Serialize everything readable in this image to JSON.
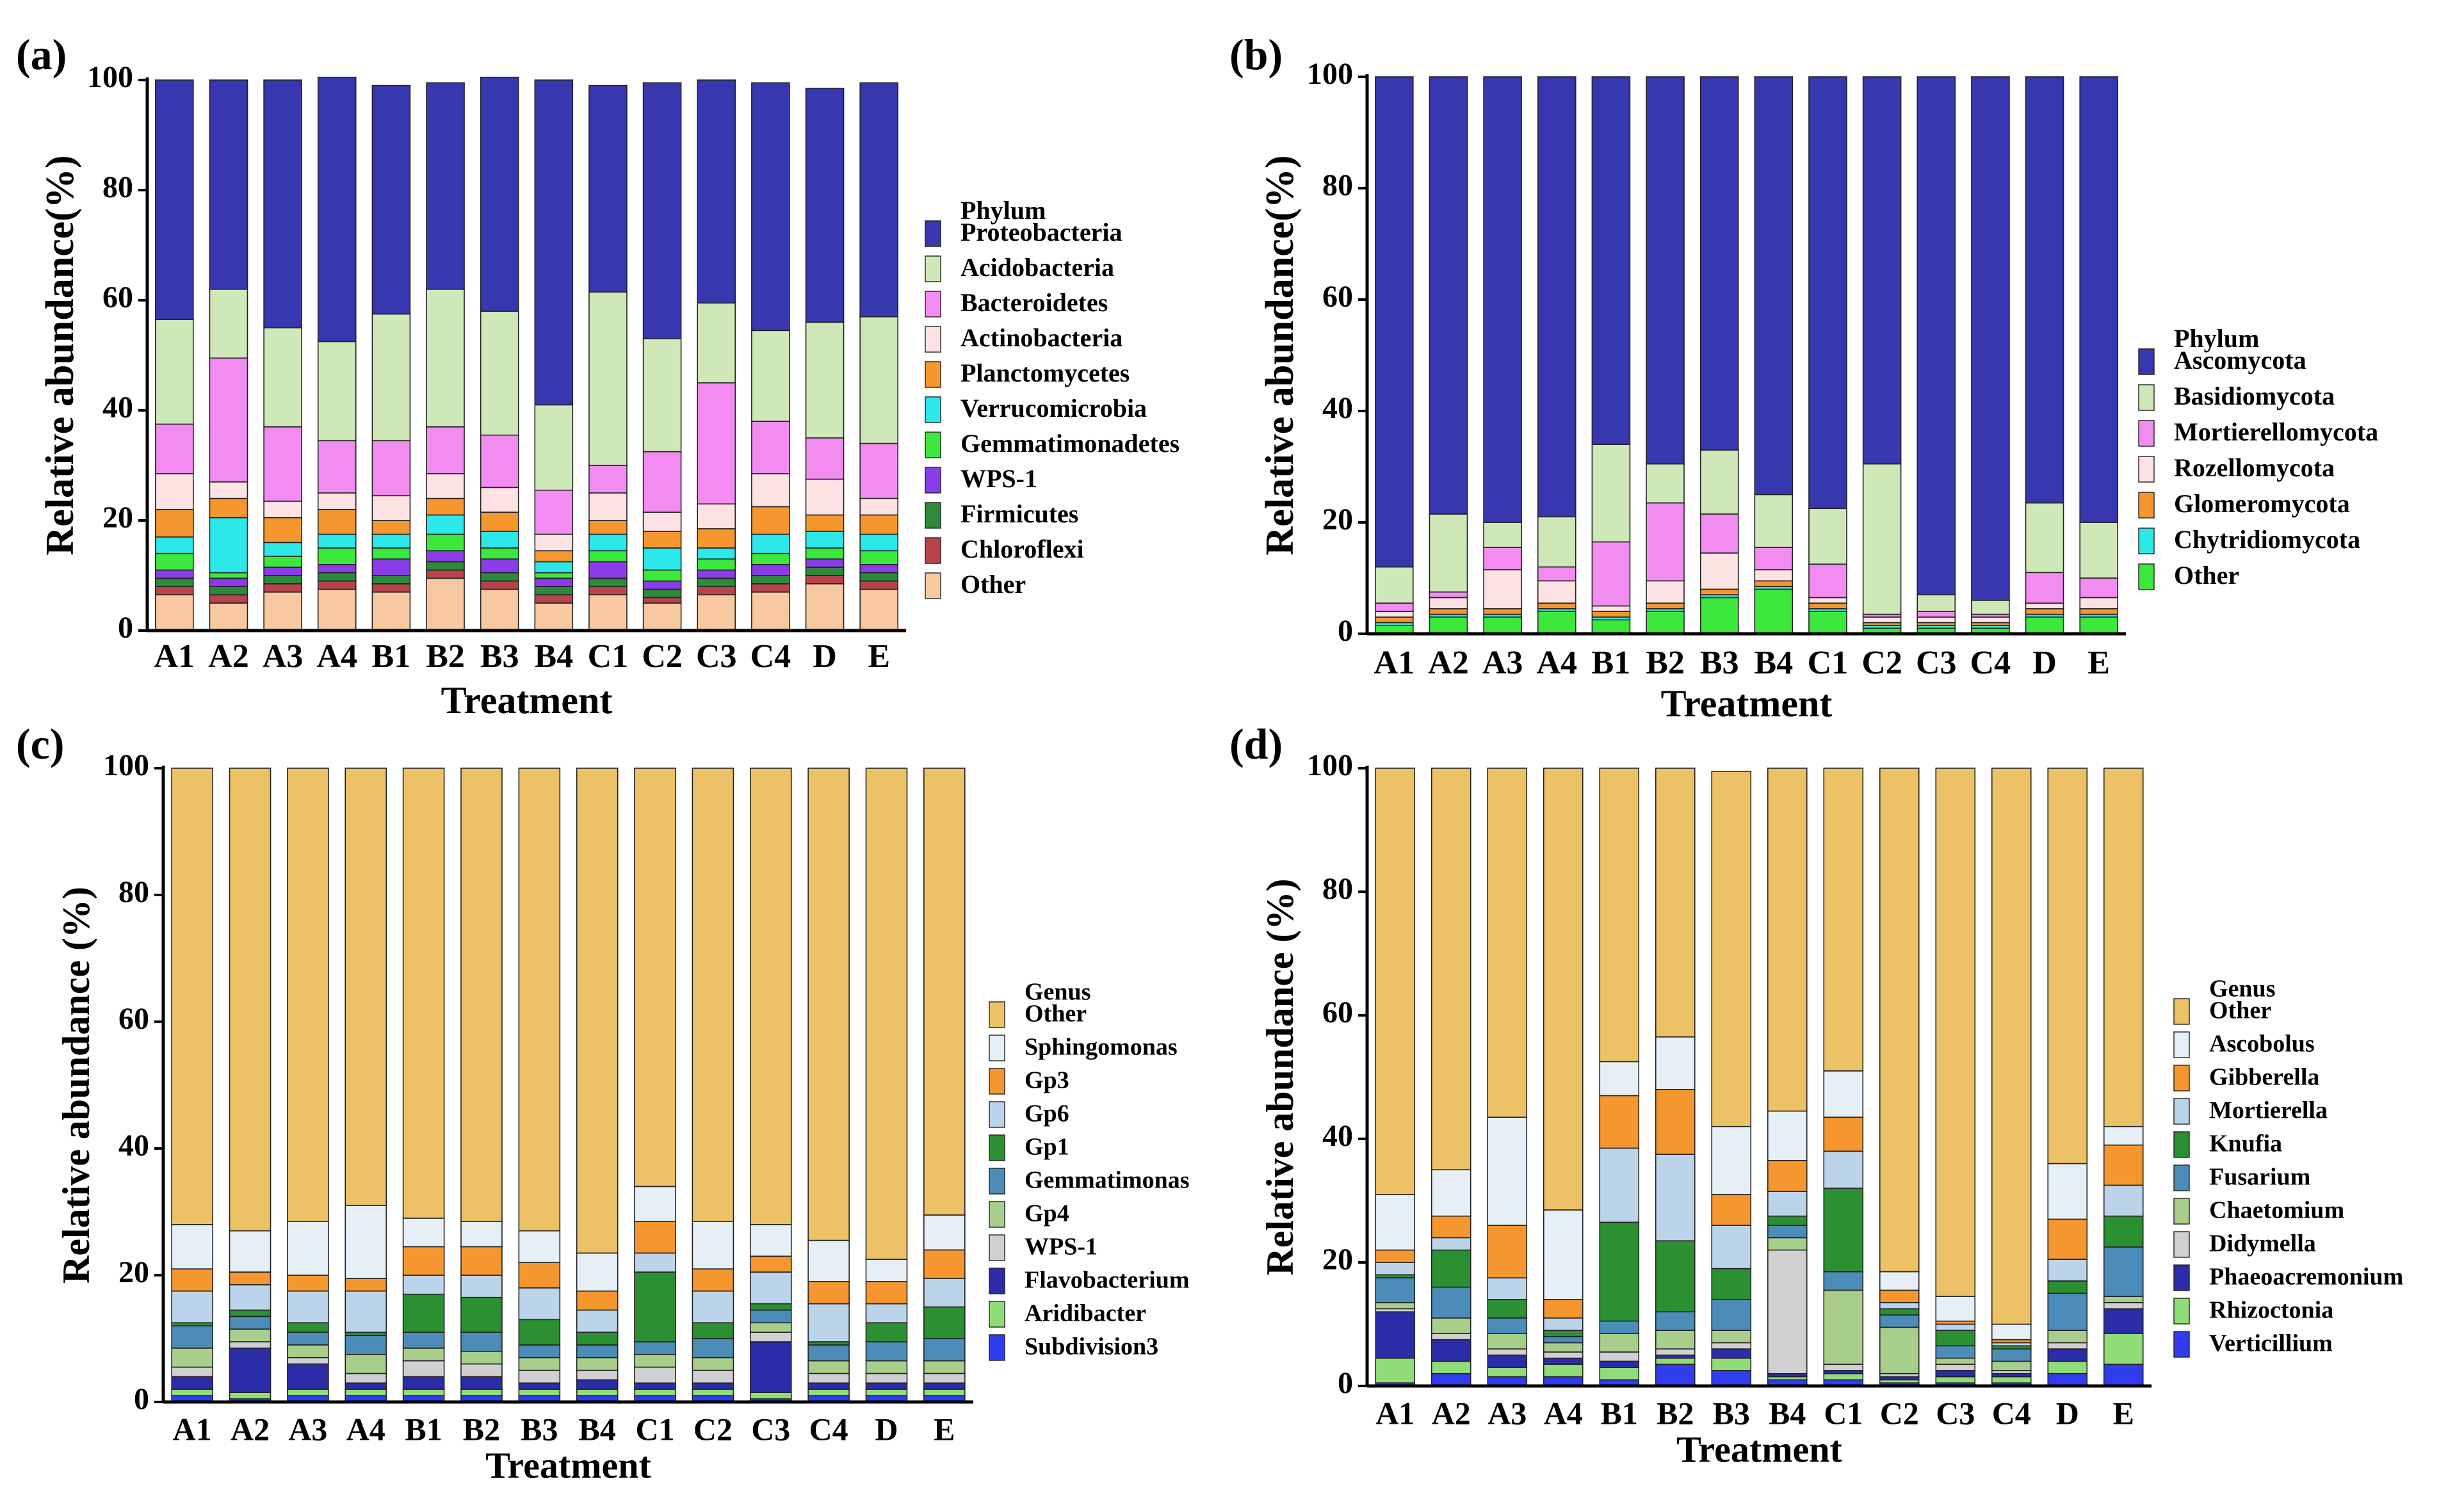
{
  "chart_data": [
    {
      "type": "bar",
      "stacked": true,
      "panel_label": "(a)",
      "xlabel": "Treatment",
      "ylabel": "Relative abundance(%)",
      "ylim": [
        0,
        100
      ],
      "yticks": [
        "0",
        "20",
        "40",
        "60",
        "80",
        "100"
      ],
      "legend_title": "Phylum",
      "legend_position": "right",
      "categories": [
        "A1",
        "A2",
        "A3",
        "A4",
        "B1",
        "B2",
        "B3",
        "B4",
        "C1",
        "C2",
        "C3",
        "C4",
        "D",
        "E"
      ],
      "series": [
        {
          "name": "Other",
          "color": "#F8C9A0",
          "values": [
            6.5,
            5,
            7,
            7.5,
            7,
            9.5,
            7.5,
            5,
            6.5,
            5,
            6.5,
            7,
            8.5,
            7.5
          ]
        },
        {
          "name": "Chloroflexi",
          "color": "#B8434D",
          "values": [
            1.5,
            1.5,
            1.5,
            1.5,
            1.5,
            1.5,
            1.5,
            1.5,
            1.5,
            1,
            1.5,
            1.5,
            1.5,
            1.5
          ]
        },
        {
          "name": "Firmicutes",
          "color": "#2C8A3A",
          "values": [
            1.5,
            1.5,
            1.5,
            1.5,
            1.5,
            1.5,
            1.5,
            1.5,
            1.5,
            1.5,
            1.5,
            1.5,
            1.5,
            1.5
          ]
        },
        {
          "name": "WPS-1",
          "color": "#8B3CE8",
          "values": [
            1.5,
            1.5,
            1.5,
            1.5,
            3,
            2,
            2.5,
            1.5,
            3,
            1.5,
            1.5,
            2,
            1.5,
            1.5
          ]
        },
        {
          "name": "Gemmatimonadetes",
          "color": "#3CE83C",
          "values": [
            3,
            1,
            2,
            3,
            2,
            3,
            2,
            1,
            2,
            2,
            2,
            2,
            2,
            2.5
          ]
        },
        {
          "name": "Verrucomicrobia",
          "color": "#2CE8E8",
          "values": [
            3,
            10,
            2.5,
            2.5,
            2.5,
            3.5,
            3,
            2,
            3,
            4,
            2,
            3.5,
            3,
            3
          ]
        },
        {
          "name": "Planctomycetes",
          "color": "#F5972E",
          "values": [
            5,
            3.5,
            4.5,
            4.5,
            2.5,
            3,
            3.5,
            2,
            2.5,
            3,
            3.5,
            5,
            3,
            3.5
          ]
        },
        {
          "name": "Actinobacteria",
          "color": "#FCE2E2",
          "values": [
            6.5,
            3,
            3,
            3,
            4.5,
            4.5,
            4.5,
            3,
            5,
            3.5,
            4.5,
            6,
            6.5,
            3
          ]
        },
        {
          "name": "Bacteroidetes",
          "color": "#F28CF0",
          "values": [
            9,
            22.5,
            13.5,
            9.5,
            10,
            8.5,
            9.5,
            8,
            5,
            11,
            22,
            9.5,
            7.5,
            10
          ]
        },
        {
          "name": "Acidobacteria",
          "color": "#CFE8B8",
          "values": [
            19,
            12.5,
            18,
            18,
            23,
            25,
            22.5,
            15.5,
            31.5,
            20.5,
            14.5,
            16.5,
            21,
            23
          ]
        },
        {
          "name": "Proteobacteria",
          "color": "#3737B0",
          "values": [
            43.5,
            38,
            45,
            48,
            41.5,
            37.5,
            42.5,
            59,
            37.5,
            46.5,
            40.5,
            45,
            42.5,
            42.5
          ]
        }
      ]
    },
    {
      "type": "bar",
      "stacked": true,
      "panel_label": "(b)",
      "xlabel": "Treatment",
      "ylabel": "Relative abundance(%)",
      "ylim": [
        0,
        100
      ],
      "yticks": [
        "0",
        "20",
        "40",
        "60",
        "80",
        "100"
      ],
      "legend_title": "Phylum",
      "legend_position": "right",
      "categories": [
        "A1",
        "A2",
        "A3",
        "A4",
        "B1",
        "B2",
        "B3",
        "B4",
        "C1",
        "C2",
        "C3",
        "C4",
        "D",
        "E"
      ],
      "series": [
        {
          "name": "Other",
          "color": "#3CE83C",
          "values": [
            1.5,
            3,
            3,
            4,
            2.5,
            4,
            6.5,
            8,
            4,
            1,
            1,
            1,
            3,
            3
          ]
        },
        {
          "name": "Chytridiomycota",
          "color": "#2CE8E8",
          "values": [
            0.5,
            0.5,
            0.5,
            0.5,
            0.5,
            0.5,
            0.5,
            0.5,
            0.5,
            0.5,
            0.5,
            0.5,
            0.5,
            0.5
          ]
        },
        {
          "name": "Glomeromycota",
          "color": "#F5972E",
          "values": [
            1,
            1,
            1,
            1,
            1,
            1,
            1,
            1,
            1,
            0.5,
            0.5,
            0.5,
            1,
            1
          ]
        },
        {
          "name": "Rozellomycota",
          "color": "#FCE2E2",
          "values": [
            1,
            2,
            7,
            4,
            1,
            4,
            6.5,
            2,
            1,
            1,
            1,
            1,
            1,
            2
          ]
        },
        {
          "name": "Mortierellomycota",
          "color": "#F28CF0",
          "values": [
            1.5,
            1,
            4,
            2.5,
            11.5,
            14,
            7,
            4,
            6,
            0.5,
            1,
            0.5,
            5.5,
            3.5
          ]
        },
        {
          "name": "Basidiomycota",
          "color": "#CFE8B8",
          "values": [
            6.5,
            14,
            4.5,
            9,
            17.5,
            7,
            11.5,
            9.5,
            10,
            27,
            3,
            2.5,
            12.5,
            10
          ]
        },
        {
          "name": "Ascomycota",
          "color": "#3737B0",
          "values": [
            88,
            78.5,
            80,
            79,
            66,
            69.5,
            67,
            75,
            77.5,
            69.5,
            93,
            94,
            76.5,
            80
          ]
        }
      ]
    },
    {
      "type": "bar",
      "stacked": true,
      "panel_label": "(c)",
      "xlabel": "Treatment",
      "ylabel": "Relative abundance (%)",
      "ylim": [
        0,
        100
      ],
      "yticks": [
        "0",
        "20",
        "40",
        "60",
        "80",
        "100"
      ],
      "legend_title": "Genus",
      "legend_position": "right",
      "categories": [
        "A1",
        "A2",
        "A3",
        "A4",
        "B1",
        "B2",
        "B3",
        "B4",
        "C1",
        "C2",
        "C3",
        "C4",
        "D",
        "E"
      ],
      "series": [
        {
          "name": "Subdivision3",
          "color": "#2F3CF0",
          "values": [
            1,
            0.5,
            1,
            1,
            1,
            1,
            1,
            1,
            1,
            1,
            0.5,
            1,
            1,
            1
          ]
        },
        {
          "name": "Aridibacter",
          "color": "#90DC78",
          "values": [
            1,
            1,
            1,
            1,
            1,
            1,
            1,
            1,
            1,
            1,
            1,
            1,
            1,
            1
          ]
        },
        {
          "name": "Flavobacterium",
          "color": "#2C2CA8",
          "values": [
            2,
            7,
            4,
            1,
            2,
            2,
            1,
            1.5,
            1,
            1,
            8,
            1,
            1,
            1
          ]
        },
        {
          "name": "WPS-1",
          "color": "#D0D0D0",
          "values": [
            1.5,
            1,
            1,
            1.5,
            2.5,
            2,
            2,
            1.5,
            2.5,
            2,
            1.5,
            1.5,
            1.5,
            1.5
          ]
        },
        {
          "name": "Gp4",
          "color": "#A8CE8C",
          "values": [
            3,
            2,
            2,
            3,
            2,
            2,
            2,
            2,
            2,
            2,
            1.5,
            2,
            2,
            2
          ]
        },
        {
          "name": "Gemmatimonas",
          "color": "#4B8CB8",
          "values": [
            3.5,
            2,
            2,
            3,
            2.5,
            3,
            2,
            2,
            2,
            3,
            2,
            2.5,
            3,
            3.5
          ]
        },
        {
          "name": "Gp1",
          "color": "#2A9032",
          "values": [
            0.5,
            1,
            1.5,
            0.5,
            6,
            5.5,
            4,
            2,
            11,
            2.5,
            1,
            0.5,
            3,
            5
          ]
        },
        {
          "name": "Gp6",
          "color": "#BCD4EA",
          "values": [
            5,
            4,
            5,
            6.5,
            3,
            3.5,
            5,
            3.5,
            3,
            5,
            5,
            6,
            3,
            4.5
          ]
        },
        {
          "name": "Gp3",
          "color": "#F5972E",
          "values": [
            3.5,
            2,
            2.5,
            2,
            4.5,
            4.5,
            4,
            3,
            5,
            3.5,
            2.5,
            3.5,
            3.5,
            4.5
          ]
        },
        {
          "name": "Sphingomonas",
          "color": "#E6EEF6",
          "values": [
            7,
            6.5,
            8.5,
            11.5,
            4.5,
            4,
            5,
            6,
            5.5,
            7.5,
            5,
            6.5,
            3.5,
            5.5
          ]
        },
        {
          "name": "Other",
          "color": "#EDC165",
          "values": [
            72,
            73,
            71.5,
            69,
            71,
            71.5,
            73,
            76.5,
            66,
            71.5,
            72,
            74.5,
            77.5,
            70.5
          ]
        }
      ]
    },
    {
      "type": "bar",
      "stacked": true,
      "panel_label": "(d)",
      "xlabel": "Treatment",
      "ylabel": "Relative abundance (%)",
      "ylim": [
        0,
        100
      ],
      "yticks": [
        "0",
        "20",
        "40",
        "60",
        "80",
        "100"
      ],
      "legend_title": "Genus",
      "legend_position": "right",
      "categories": [
        "A1",
        "A2",
        "A3",
        "A4",
        "B1",
        "B2",
        "B3",
        "B4",
        "C1",
        "C2",
        "C3",
        "C4",
        "D",
        "E"
      ],
      "series": [
        {
          "name": "Verticillium",
          "color": "#2F3CF0",
          "values": [
            0.5,
            2,
            1.5,
            1.5,
            1,
            3.5,
            2.5,
            1,
            1,
            0.5,
            0.5,
            0.5,
            2,
            3.5
          ]
        },
        {
          "name": "Rhizoctonia",
          "color": "#90DC78",
          "values": [
            4,
            2,
            1.5,
            2,
            2,
            1,
            2,
            0.5,
            1,
            0.5,
            1,
            1,
            2,
            5
          ]
        },
        {
          "name": "Phaeoacremonium",
          "color": "#2C2CA8",
          "values": [
            7.5,
            3.5,
            2,
            1,
            1,
            0.5,
            1.5,
            0.5,
            0.5,
            0.5,
            1,
            0.5,
            2,
            4
          ]
        },
        {
          "name": "Didymella",
          "color": "#D0D0D0",
          "values": [
            0.5,
            1,
            1,
            1,
            1.5,
            1,
            1,
            20,
            1,
            0.5,
            1,
            0.5,
            1,
            1
          ]
        },
        {
          "name": "Chaetomium",
          "color": "#A8CE8C",
          "values": [
            1,
            2.5,
            2.5,
            1.5,
            3,
            3,
            2,
            2,
            12,
            7.5,
            1,
            1.5,
            2,
            1
          ]
        },
        {
          "name": "Fusarium",
          "color": "#4B8CB8",
          "values": [
            4,
            5,
            2.5,
            1,
            2,
            3,
            5,
            2,
            3,
            2,
            2,
            2,
            6,
            8
          ]
        },
        {
          "name": "Knufia",
          "color": "#2A9032",
          "values": [
            0.5,
            6,
            3,
            1,
            16,
            11.5,
            5,
            1.5,
            13.5,
            1,
            2.5,
            0.5,
            2,
            5
          ]
        },
        {
          "name": "Mortierella",
          "color": "#BCD4EA",
          "values": [
            2,
            2,
            3.5,
            2,
            12,
            14,
            7,
            4,
            6,
            1,
            1,
            0.5,
            3.5,
            5
          ]
        },
        {
          "name": "Gibberella",
          "color": "#F5972E",
          "values": [
            2,
            3.5,
            8.5,
            3,
            8.5,
            10.5,
            5,
            5,
            5.5,
            2,
            0.5,
            0.5,
            6.5,
            6.5
          ]
        },
        {
          "name": "Ascobolus",
          "color": "#E6EEF6",
          "values": [
            9,
            7.5,
            17.5,
            14.5,
            5.5,
            8.5,
            11,
            8,
            7.5,
            3,
            4,
            2.5,
            9,
            3
          ]
        },
        {
          "name": "Other",
          "color": "#EDC165",
          "values": [
            69,
            65,
            56.5,
            71.5,
            47.5,
            43.5,
            57.5,
            55.5,
            49,
            81.5,
            85.5,
            90,
            64,
            58
          ]
        }
      ]
    }
  ]
}
